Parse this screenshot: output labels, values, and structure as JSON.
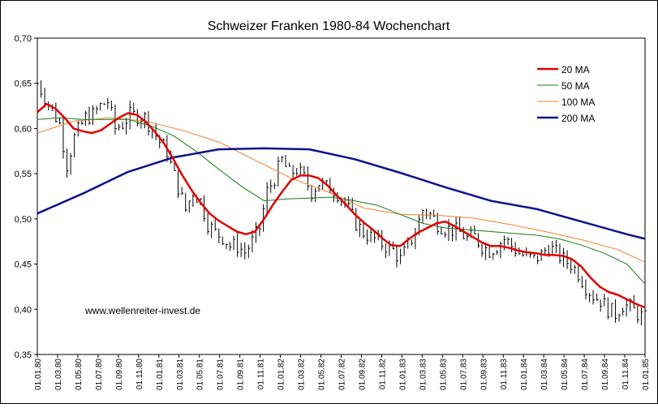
{
  "chart_data": {
    "type": "line",
    "title": "Schweizer Franken 1980-84 Wochenchart",
    "watermark": "www.wellenreiter-invest.de",
    "xlabel": "",
    "ylabel": "",
    "ylim": [
      0.35,
      0.7
    ],
    "y_ticks": [
      "0,35",
      "0,40",
      "0,45",
      "0,50",
      "0,55",
      "0,60",
      "0,65",
      "0,70"
    ],
    "x_ticks": [
      "01.01.80",
      "01.03.80",
      "01.05.80",
      "01.07.80",
      "01.09.80",
      "01.11.80",
      "01.01.81",
      "01.03.81",
      "01.05.81",
      "01.07.81",
      "01.09.81",
      "01.11.81",
      "01.01.82",
      "01.03.82",
      "01.05.82",
      "01.07.82",
      "01.09.82",
      "01.11.82",
      "01.01.83",
      "01.03.83",
      "01.05.83",
      "01.07.83",
      "01.09.83",
      "01.11.83",
      "01.01.84",
      "01.03.84",
      "01.05.84",
      "01.07.84",
      "01.09.84",
      "01.11.84",
      "01.01.85"
    ],
    "grid": false,
    "legend_position": "top-right",
    "colors": {
      "price_bars": "#000000",
      "ma20": "#e00000",
      "ma50": "#1a7a1a",
      "ma100": "#f08030",
      "ma200": "#10108a"
    },
    "price_keypoints": [
      [
        0,
        0.65
      ],
      [
        3,
        0.628
      ],
      [
        6,
        0.605
      ],
      [
        8,
        0.56
      ],
      [
        10,
        0.59
      ],
      [
        13,
        0.612
      ],
      [
        15,
        0.615
      ],
      [
        17,
        0.625
      ],
      [
        19,
        0.63
      ],
      [
        21,
        0.6
      ],
      [
        23,
        0.605
      ],
      [
        25,
        0.615
      ],
      [
        27,
        0.614
      ],
      [
        29,
        0.612
      ],
      [
        31,
        0.6
      ],
      [
        33,
        0.585
      ],
      [
        35,
        0.575
      ],
      [
        36,
        0.56
      ],
      [
        38,
        0.535
      ],
      [
        40,
        0.51
      ],
      [
        42,
        0.53
      ],
      [
        44,
        0.52
      ],
      [
        46,
        0.495
      ],
      [
        48,
        0.485
      ],
      [
        50,
        0.48
      ],
      [
        52,
        0.47
      ],
      [
        54,
        0.47
      ],
      [
        56,
        0.463
      ],
      [
        58,
        0.475
      ],
      [
        60,
        0.49
      ],
      [
        62,
        0.53
      ],
      [
        64,
        0.545
      ],
      [
        66,
        0.565
      ],
      [
        68,
        0.55
      ],
      [
        70,
        0.555
      ],
      [
        72,
        0.545
      ],
      [
        74,
        0.53
      ],
      [
        76,
        0.54
      ],
      [
        78,
        0.535
      ],
      [
        80,
        0.532
      ],
      [
        82,
        0.525
      ],
      [
        84,
        0.51
      ],
      [
        86,
        0.495
      ],
      [
        88,
        0.485
      ],
      [
        90,
        0.48
      ],
      [
        92,
        0.475
      ],
      [
        94,
        0.47
      ],
      [
        96,
        0.465
      ],
      [
        98,
        0.455
      ],
      [
        100,
        0.47
      ],
      [
        102,
        0.485
      ],
      [
        104,
        0.51
      ],
      [
        106,
        0.505
      ],
      [
        108,
        0.495
      ],
      [
        110,
        0.49
      ],
      [
        112,
        0.488
      ],
      [
        114,
        0.485
      ],
      [
        116,
        0.478
      ],
      [
        118,
        0.48
      ],
      [
        120,
        0.47
      ],
      [
        122,
        0.465
      ],
      [
        124,
        0.47
      ],
      [
        126,
        0.478
      ],
      [
        128,
        0.47
      ],
      [
        130,
        0.462
      ],
      [
        132,
        0.458
      ],
      [
        134,
        0.455
      ],
      [
        136,
        0.46
      ],
      [
        138,
        0.47
      ],
      [
        140,
        0.462
      ],
      [
        142,
        0.455
      ],
      [
        144,
        0.45
      ],
      [
        146,
        0.44
      ],
      [
        148,
        0.425
      ],
      [
        150,
        0.415
      ],
      [
        152,
        0.41
      ],
      [
        154,
        0.4
      ],
      [
        156,
        0.395
      ],
      [
        158,
        0.405
      ],
      [
        160,
        0.402
      ],
      [
        162,
        0.395
      ],
      [
        164,
        0.39
      ]
    ],
    "series": [
      {
        "name": "20 MA",
        "points": [
          [
            0,
            0.618
          ],
          [
            2,
            0.627
          ],
          [
            4,
            0.622
          ],
          [
            6,
            0.612
          ],
          [
            8,
            0.6
          ],
          [
            10,
            0.597
          ],
          [
            12,
            0.595
          ],
          [
            14,
            0.598
          ],
          [
            16,
            0.605
          ],
          [
            18,
            0.612
          ],
          [
            20,
            0.617
          ],
          [
            22,
            0.615
          ],
          [
            24,
            0.607
          ],
          [
            26,
            0.596
          ],
          [
            28,
            0.583
          ],
          [
            30,
            0.566
          ],
          [
            32,
            0.548
          ],
          [
            34,
            0.532
          ],
          [
            36,
            0.518
          ],
          [
            38,
            0.506
          ],
          [
            40,
            0.498
          ],
          [
            42,
            0.492
          ],
          [
            44,
            0.486
          ],
          [
            46,
            0.483
          ],
          [
            48,
            0.486
          ],
          [
            50,
            0.5
          ],
          [
            52,
            0.516
          ],
          [
            54,
            0.53
          ],
          [
            56,
            0.543
          ],
          [
            58,
            0.548
          ],
          [
            60,
            0.548
          ],
          [
            62,
            0.545
          ],
          [
            64,
            0.537
          ],
          [
            66,
            0.526
          ],
          [
            68,
            0.516
          ],
          [
            70,
            0.505
          ],
          [
            72,
            0.496
          ],
          [
            74,
            0.488
          ],
          [
            76,
            0.479
          ],
          [
            78,
            0.471
          ],
          [
            80,
            0.47
          ],
          [
            82,
            0.478
          ],
          [
            84,
            0.485
          ],
          [
            86,
            0.49
          ],
          [
            88,
            0.495
          ],
          [
            90,
            0.497
          ],
          [
            92,
            0.492
          ],
          [
            94,
            0.486
          ],
          [
            96,
            0.48
          ],
          [
            98,
            0.474
          ],
          [
            100,
            0.47
          ],
          [
            102,
            0.47
          ],
          [
            104,
            0.468
          ],
          [
            106,
            0.465
          ],
          [
            108,
            0.463
          ],
          [
            110,
            0.462
          ],
          [
            112,
            0.46
          ],
          [
            114,
            0.46
          ],
          [
            116,
            0.459
          ],
          [
            118,
            0.455
          ],
          [
            120,
            0.447
          ],
          [
            122,
            0.435
          ],
          [
            124,
            0.425
          ],
          [
            126,
            0.419
          ],
          [
            128,
            0.416
          ],
          [
            130,
            0.411
          ],
          [
            132,
            0.406
          ],
          [
            134,
            0.402
          ]
        ]
      },
      {
        "name": "50 MA",
        "points": [
          [
            0,
            0.61
          ],
          [
            5,
            0.612
          ],
          [
            10,
            0.61
          ],
          [
            15,
            0.61
          ],
          [
            20,
            0.61
          ],
          [
            25,
            0.603
          ],
          [
            30,
            0.592
          ],
          [
            35,
            0.575
          ],
          [
            40,
            0.555
          ],
          [
            45,
            0.536
          ],
          [
            50,
            0.52
          ],
          [
            55,
            0.522
          ],
          [
            60,
            0.523
          ],
          [
            65,
            0.524
          ],
          [
            70,
            0.52
          ],
          [
            75,
            0.515
          ],
          [
            80,
            0.505
          ],
          [
            85,
            0.495
          ],
          [
            90,
            0.49
          ],
          [
            95,
            0.488
          ],
          [
            100,
            0.486
          ],
          [
            105,
            0.484
          ],
          [
            110,
            0.482
          ],
          [
            115,
            0.478
          ],
          [
            120,
            0.471
          ],
          [
            125,
            0.462
          ],
          [
            130,
            0.45
          ],
          [
            134,
            0.428
          ]
        ]
      },
      {
        "name": "100 MA",
        "points": [
          [
            0,
            0.595
          ],
          [
            8,
            0.608
          ],
          [
            16,
            0.612
          ],
          [
            24,
            0.608
          ],
          [
            32,
            0.598
          ],
          [
            40,
            0.585
          ],
          [
            48,
            0.565
          ],
          [
            56,
            0.545
          ],
          [
            64,
            0.53
          ],
          [
            72,
            0.512
          ],
          [
            80,
            0.505
          ],
          [
            88,
            0.504
          ],
          [
            96,
            0.501
          ],
          [
            104,
            0.494
          ],
          [
            112,
            0.486
          ],
          [
            120,
            0.477
          ],
          [
            128,
            0.466
          ],
          [
            134,
            0.452
          ]
        ]
      },
      {
        "name": "200 MA",
        "points": [
          [
            0,
            0.506
          ],
          [
            10,
            0.528
          ],
          [
            20,
            0.552
          ],
          [
            30,
            0.568
          ],
          [
            40,
            0.577
          ],
          [
            50,
            0.578
          ],
          [
            60,
            0.577
          ],
          [
            70,
            0.566
          ],
          [
            80,
            0.551
          ],
          [
            90,
            0.535
          ],
          [
            100,
            0.52
          ],
          [
            110,
            0.511
          ],
          [
            120,
            0.497
          ],
          [
            130,
            0.483
          ],
          [
            134,
            0.478
          ]
        ]
      }
    ]
  }
}
